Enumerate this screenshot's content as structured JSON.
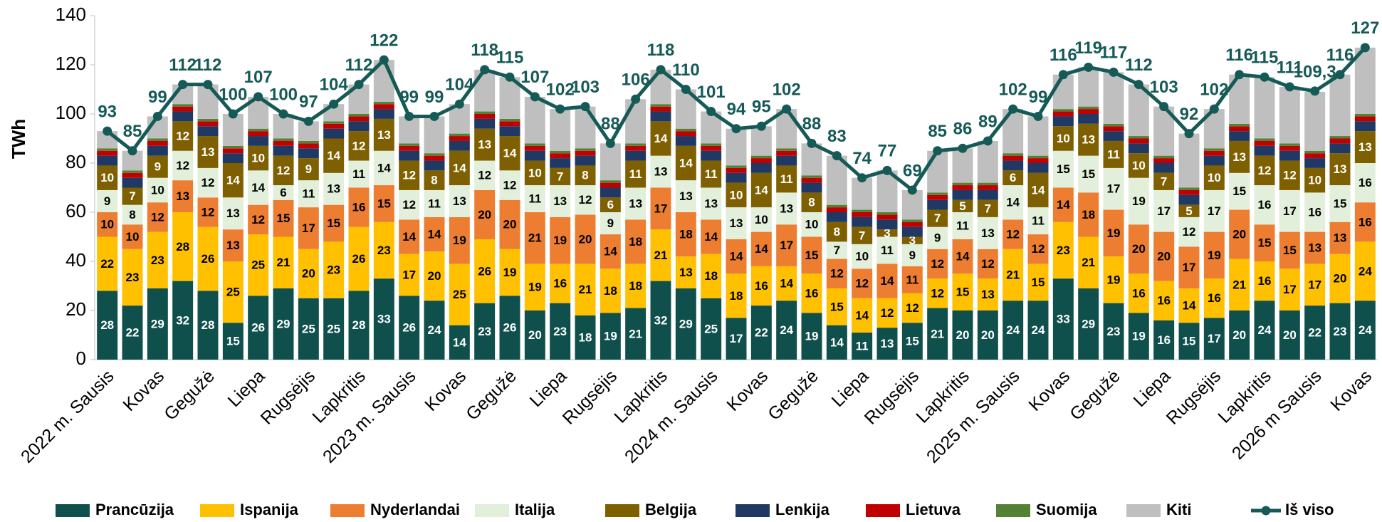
{
  "chart_data": {
    "type": "bar",
    "stacked": true,
    "y_label": "TWh",
    "ylim": [
      0,
      140
    ],
    "yticks": [
      0,
      20,
      40,
      60,
      80,
      100,
      120,
      140
    ],
    "grid": false,
    "legend": "bottom",
    "categories": [
      "2022 m. Sausis",
      null,
      "Kovas",
      null,
      "Gegužė",
      null,
      "Liepa",
      null,
      "Rugsėjis",
      null,
      "Lapkritis",
      null,
      "2023 m. Sausis",
      null,
      "Kovas",
      null,
      "Gegužė",
      null,
      "Liepa",
      null,
      "Rugsėjis",
      null,
      "Lapkritis",
      null,
      "2024 m. Sausis",
      null,
      "Kovas",
      null,
      "Gegužė",
      null,
      "Liepa",
      null,
      "Rugsėjis",
      null,
      "Lapkritis",
      null,
      "2025 m. Sausis",
      null,
      "Kovas",
      null,
      "Gegužė",
      null,
      "Liepa",
      null,
      "Rugsėjis",
      null,
      "Lapkritis",
      null,
      "2026 m Sausis",
      null,
      "Kovas"
    ],
    "series": [
      {
        "name": "Prancūzija",
        "color": "#0f4f4c",
        "label_color": "#ffffff",
        "labels": true,
        "values": [
          28,
          22,
          29,
          32,
          28,
          15,
          26,
          29,
          25,
          25,
          28,
          33,
          26,
          24,
          14,
          23,
          26,
          20,
          23,
          18,
          19,
          21,
          32,
          29,
          25,
          17,
          22,
          24,
          19,
          14,
          11,
          13,
          15,
          21,
          20,
          20,
          24,
          24,
          33,
          29,
          23,
          19,
          16,
          15,
          17,
          20,
          24,
          20,
          22,
          23,
          24
        ]
      },
      {
        "name": "Ispanija",
        "color": "#ffc000",
        "label_color": "#000000",
        "labels": true,
        "values": [
          22,
          23,
          23,
          28,
          26,
          25,
          25,
          21,
          20,
          23,
          26,
          23,
          17,
          20,
          25,
          26,
          19,
          19,
          16,
          21,
          18,
          18,
          21,
          13,
          18,
          18,
          16,
          14,
          16,
          15,
          14,
          12,
          12,
          12,
          15,
          13,
          21,
          15,
          23,
          21,
          19,
          16,
          16,
          14,
          16,
          21,
          16,
          17,
          17,
          20,
          24
        ]
      },
      {
        "name": "Nyderlandai",
        "color": "#ed7d31",
        "label_color": "#000000",
        "labels": true,
        "values": [
          10,
          10,
          12,
          13,
          12,
          13,
          12,
          15,
          17,
          15,
          16,
          15,
          14,
          14,
          19,
          20,
          20,
          21,
          19,
          20,
          14,
          18,
          17,
          18,
          14,
          14,
          14,
          17,
          15,
          12,
          12,
          14,
          11,
          12,
          14,
          12,
          12,
          12,
          14,
          18,
          19,
          20,
          20,
          17,
          19,
          20,
          15,
          15,
          13,
          13,
          16
        ]
      },
      {
        "name": "Italija",
        "color": "#e2efda",
        "label_color": "#000000",
        "labels": true,
        "values": [
          9,
          8,
          10,
          12,
          12,
          13,
          14,
          6,
          11,
          13,
          11,
          14,
          12,
          11,
          13,
          12,
          12,
          11,
          13,
          12,
          9,
          13,
          13,
          13,
          13,
          13,
          10,
          13,
          10,
          7,
          10,
          11,
          9,
          9,
          11,
          13,
          14,
          11,
          15,
          15,
          17,
          19,
          17,
          12,
          17,
          15,
          16,
          17,
          16,
          15,
          16
        ]
      },
      {
        "name": "Belgija",
        "color": "#7f6000",
        "label_color": "#ffffff",
        "labels": true,
        "values": [
          10,
          7,
          9,
          12,
          13,
          14,
          10,
          12,
          9,
          14,
          12,
          13,
          12,
          8,
          14,
          13,
          14,
          10,
          7,
          8,
          6,
          11,
          14,
          14,
          11,
          10,
          14,
          11,
          8,
          8,
          7,
          3,
          3,
          7,
          5,
          7,
          6,
          14,
          10,
          13,
          11,
          10,
          7,
          5,
          10,
          13,
          12,
          12,
          10,
          13,
          13
        ]
      },
      {
        "name": "Lenkija",
        "color": "#1f3864",
        "values": [
          4,
          4,
          4,
          4,
          4,
          4,
          4,
          4,
          4,
          4,
          4,
          4,
          4,
          4,
          4,
          4,
          4,
          4,
          4,
          4,
          4,
          4,
          4,
          4,
          4,
          4,
          4,
          4,
          4,
          4,
          4,
          4,
          4,
          4,
          4,
          4,
          4,
          4,
          4,
          4,
          4,
          4,
          4,
          4,
          4,
          4,
          4,
          4,
          4,
          4,
          4
        ]
      },
      {
        "name": "Lietuva",
        "color": "#c00000",
        "values": [
          2,
          2,
          2,
          2,
          2,
          2,
          2,
          2,
          2,
          2,
          2,
          2,
          2,
          2,
          2,
          2,
          2,
          2,
          2,
          2,
          2,
          2,
          2,
          2,
          2,
          2,
          2,
          2,
          2,
          2,
          2,
          2,
          2,
          2,
          2,
          2,
          2,
          2,
          2,
          2,
          2,
          2,
          2,
          2,
          2,
          2,
          2,
          2,
          2,
          2,
          2
        ]
      },
      {
        "name": "Suomija",
        "color": "#548235",
        "values": [
          1,
          1,
          1,
          1,
          1,
          1,
          1,
          1,
          1,
          1,
          1,
          1,
          1,
          1,
          1,
          1,
          1,
          1,
          1,
          1,
          1,
          1,
          1,
          1,
          1,
          1,
          1,
          1,
          1,
          1,
          1,
          1,
          1,
          1,
          1,
          1,
          1,
          1,
          1,
          1,
          1,
          1,
          1,
          1,
          1,
          1,
          1,
          1,
          1,
          1,
          1
        ]
      },
      {
        "name": "Kiti",
        "color": "#bfbfbf",
        "values": [
          7,
          8,
          9,
          8,
          14,
          13,
          13,
          10,
          8,
          7,
          12,
          17,
          11,
          15,
          12,
          17,
          17,
          19,
          17,
          17,
          15,
          18,
          14,
          16,
          13,
          15,
          12,
          16,
          13,
          20,
          13,
          17,
          12,
          17,
          14,
          17,
          18,
          16,
          14,
          16,
          21,
          21,
          20,
          22,
          16,
          20,
          25,
          23,
          24,
          25,
          27
        ]
      },
      {
        "name": "Iš viso",
        "type": "line",
        "color": "#155a57",
        "values": [
          93,
          85,
          99,
          112,
          112,
          100,
          107,
          100,
          97,
          104,
          112,
          122,
          99,
          99,
          104,
          118,
          115,
          107,
          102,
          103,
          88,
          106,
          118,
          110,
          101,
          94,
          95,
          102,
          88,
          83,
          74,
          77,
          69,
          85,
          86,
          89,
          102,
          99,
          116,
          119,
          117,
          112,
          103,
          92,
          102,
          116,
          115,
          111,
          109.3,
          116,
          127
        ],
        "value_labels": [
          "93",
          "85",
          "99",
          "112",
          "112",
          "100",
          "107",
          "100",
          "97",
          "104",
          "112",
          "122",
          "99",
          "99",
          "104",
          "118",
          "115",
          "107",
          "102",
          "103",
          "88",
          "106",
          "118",
          "110",
          "101",
          "94",
          "95",
          "102",
          "88",
          "83",
          "74",
          "77",
          "69",
          "85",
          "86",
          "89",
          "102",
          "99",
          "116",
          "119",
          "117",
          "112",
          "103",
          "92",
          "102",
          "116",
          "115",
          "111",
          "109,3",
          "116",
          "127"
        ]
      }
    ]
  }
}
